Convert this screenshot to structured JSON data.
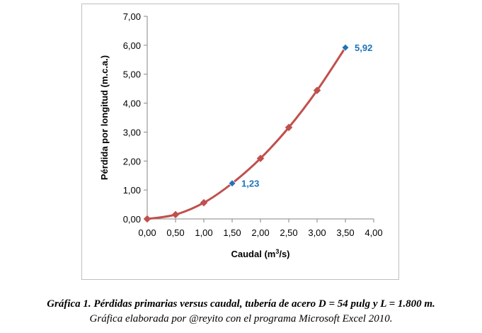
{
  "chart_data": {
    "type": "line",
    "x": [
      0.0,
      0.5,
      1.0,
      1.5,
      2.0,
      2.5,
      3.0,
      3.5
    ],
    "series": [
      {
        "values": [
          0.0,
          0.15,
          0.56,
          1.23,
          2.09,
          3.16,
          4.44,
          5.92
        ]
      }
    ],
    "xlim": [
      0,
      4
    ],
    "ylim": [
      0,
      7
    ],
    "xticks": [
      "0,00",
      "0,50",
      "1,00",
      "1,50",
      "2,00",
      "2,50",
      "3,00",
      "3,50",
      "4,00"
    ],
    "yticks": [
      "0,00",
      "1,00",
      "2,00",
      "3,00",
      "4,00",
      "5,00",
      "6,00",
      "7,00"
    ],
    "xlabel": "Caudal (m",
    "xlabel_sup": "3",
    "xlabel_end": "/s)",
    "ylabel": "Pérdida por longitud (m.c.a.)",
    "annotations": [
      {
        "x": 1.5,
        "y": 1.23,
        "text": "1,23"
      },
      {
        "x": 3.5,
        "y": 5.92,
        "text": "5,92"
      }
    ],
    "grid": false,
    "line_color": "#c0504d",
    "highlight_color": "#1f73b7"
  },
  "caption": {
    "main": "Gráfica 1. Pérdidas primarias versus caudal, tubería de acero D = 54 pulg y L = 1.800 m.",
    "sub": "Gráfica elaborada por @reyito con el programa Microsoft Excel 2010."
  }
}
